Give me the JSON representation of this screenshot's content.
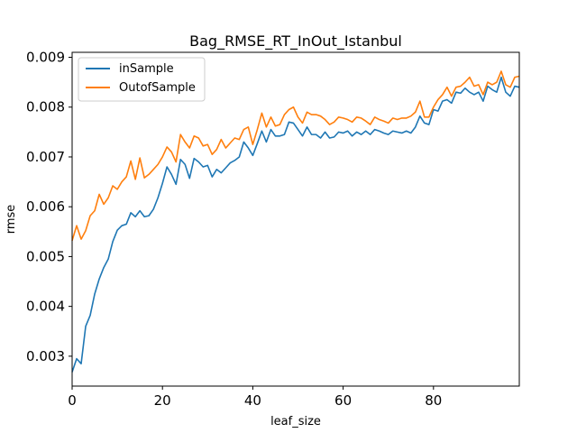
{
  "chart_data": {
    "type": "line",
    "title": "Bag_RMSE_RT_InOut_Istanbul",
    "xlabel": "leaf_size",
    "ylabel": "rmse",
    "xlim": [
      0,
      99
    ],
    "ylim": [
      0.0024,
      0.0091
    ],
    "xticks": [
      0,
      20,
      40,
      60,
      80
    ],
    "yticks": [
      0.003,
      0.004,
      0.005,
      0.006,
      0.007,
      0.008,
      0.009
    ],
    "ytick_labels": [
      "0.003",
      "0.004",
      "0.005",
      "0.006",
      "0.007",
      "0.008",
      "0.009"
    ],
    "legend_position": "top-left",
    "grid": false,
    "series": [
      {
        "name": "inSample",
        "color": "#1f77b4",
        "values": [
          0.00268,
          0.00295,
          0.00285,
          0.0036,
          0.00382,
          0.00425,
          0.00455,
          0.00478,
          0.00495,
          0.0053,
          0.00553,
          0.00562,
          0.00565,
          0.00588,
          0.0058,
          0.00592,
          0.0058,
          0.00582,
          0.00595,
          0.00618,
          0.00647,
          0.0068,
          0.00665,
          0.00645,
          0.00695,
          0.00685,
          0.00657,
          0.00697,
          0.0069,
          0.0068,
          0.00683,
          0.0066,
          0.00675,
          0.00668,
          0.00678,
          0.00688,
          0.00693,
          0.007,
          0.0073,
          0.00718,
          0.00703,
          0.00727,
          0.00752,
          0.0073,
          0.00755,
          0.00742,
          0.00742,
          0.00745,
          0.0077,
          0.00768,
          0.00755,
          0.00742,
          0.0076,
          0.00745,
          0.00745,
          0.00738,
          0.0075,
          0.00738,
          0.0074,
          0.0075,
          0.00748,
          0.00752,
          0.00742,
          0.0075,
          0.00745,
          0.00752,
          0.00745,
          0.00755,
          0.00752,
          0.00748,
          0.00745,
          0.00752,
          0.0075,
          0.00748,
          0.00752,
          0.00748,
          0.0076,
          0.00782,
          0.00768,
          0.00765,
          0.00795,
          0.00792,
          0.00812,
          0.00815,
          0.00808,
          0.0083,
          0.00828,
          0.00838,
          0.0083,
          0.00825,
          0.0083,
          0.00812,
          0.00842,
          0.00835,
          0.0083,
          0.0086,
          0.0083,
          0.00822,
          0.00842,
          0.0084
        ]
      },
      {
        "name": "OutofSample",
        "color": "#ff7f0e",
        "values": [
          0.00532,
          0.00562,
          0.00535,
          0.00552,
          0.00582,
          0.00592,
          0.00625,
          0.00605,
          0.00618,
          0.00642,
          0.00635,
          0.0065,
          0.0066,
          0.00692,
          0.00655,
          0.00698,
          0.00658,
          0.00665,
          0.00675,
          0.00685,
          0.007,
          0.0072,
          0.0071,
          0.0069,
          0.00745,
          0.0073,
          0.00718,
          0.00742,
          0.00738,
          0.00722,
          0.00725,
          0.00705,
          0.00715,
          0.00735,
          0.00718,
          0.00728,
          0.00738,
          0.00735,
          0.00755,
          0.0076,
          0.00725,
          0.00755,
          0.00788,
          0.0076,
          0.0078,
          0.00762,
          0.00765,
          0.00785,
          0.00795,
          0.008,
          0.0078,
          0.00768,
          0.0079,
          0.00785,
          0.00785,
          0.00782,
          0.00775,
          0.00765,
          0.0077,
          0.0078,
          0.00778,
          0.00775,
          0.0077,
          0.0078,
          0.00778,
          0.00772,
          0.00765,
          0.0078,
          0.00775,
          0.00772,
          0.00768,
          0.00778,
          0.00775,
          0.00778,
          0.00778,
          0.00782,
          0.0079,
          0.00812,
          0.0078,
          0.0078,
          0.008,
          0.00815,
          0.00825,
          0.0084,
          0.00822,
          0.0084,
          0.00842,
          0.0085,
          0.0086,
          0.00842,
          0.00845,
          0.00825,
          0.0085,
          0.00845,
          0.0085,
          0.00872,
          0.00845,
          0.0084,
          0.0086,
          0.00862
        ]
      }
    ]
  }
}
